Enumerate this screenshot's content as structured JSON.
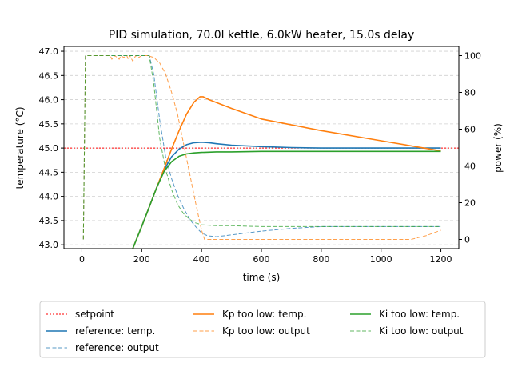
{
  "chart_data": {
    "type": "line",
    "title": "PID simulation, 70.0l kettle, 6.0kW heater, 15.0s delay",
    "xlabel": "time (s)",
    "ylabel_left": "temperature (°C)",
    "ylabel_right": "power (%)",
    "xlim": [
      -60,
      1260
    ],
    "ylim_left": [
      42.92,
      47.1
    ],
    "ylim_right": [
      -5,
      105
    ],
    "x_ticks": [
      0,
      200,
      400,
      600,
      800,
      1000,
      1200
    ],
    "y_left_ticks": [
      "43.0",
      "43.5",
      "44.0",
      "44.5",
      "45.0",
      "45.5",
      "46.0",
      "46.5",
      "47.0"
    ],
    "y_right_ticks": [
      0,
      20,
      40,
      60,
      80,
      100
    ],
    "grid": "horizontal dashed",
    "setpoint": 45.0,
    "series": [
      {
        "name": "setpoint",
        "axis": "left",
        "color": "#ff0000",
        "style": "dotted",
        "x": [
          -60,
          1260
        ],
        "y": [
          45.0,
          45.0
        ]
      },
      {
        "name": "reference: temp.",
        "axis": "left",
        "color": "#1f77b4",
        "style": "solid",
        "x": [
          170,
          200,
          225,
          250,
          275,
          300,
          325,
          350,
          375,
          400,
          425,
          450,
          500,
          600,
          700,
          800,
          1000,
          1200
        ],
        "y": [
          42.92,
          43.38,
          43.78,
          44.18,
          44.55,
          44.82,
          44.98,
          45.07,
          45.11,
          45.12,
          45.11,
          45.09,
          45.06,
          45.03,
          45.01,
          45.0,
          45.0,
          45.0
        ]
      },
      {
        "name": "reference: output",
        "axis": "right",
        "color": "#1f77b4",
        "style": "dashed",
        "x": [
          5,
          12,
          20,
          225,
          240,
          260,
          280,
          300,
          320,
          340,
          360,
          380,
          400,
          420,
          450,
          500,
          600,
          700,
          800,
          1000,
          1200
        ],
        "y": [
          0,
          100,
          100,
          100,
          90,
          65,
          45,
          33,
          24,
          17,
          11,
          7,
          3.5,
          2,
          1.5,
          2.5,
          4.5,
          6,
          7,
          7,
          7
        ]
      },
      {
        "name": "Kp too low: temp.",
        "axis": "left",
        "color": "#ff7f0e",
        "style": "solid",
        "x": [
          170,
          200,
          225,
          250,
          275,
          300,
          325,
          350,
          375,
          395,
          405,
          425,
          450,
          500,
          600,
          800,
          1000,
          1200
        ],
        "y": [
          42.92,
          43.38,
          43.78,
          44.18,
          44.58,
          44.98,
          45.36,
          45.7,
          45.95,
          46.06,
          46.06,
          46.0,
          45.94,
          45.82,
          45.6,
          45.36,
          45.15,
          44.94
        ]
      },
      {
        "name": "Kp too low: output",
        "axis": "right",
        "color": "#ff7f0e",
        "style": "dashed",
        "x": [
          5,
          12,
          20,
          95,
          100,
          110,
          125,
          130,
          140,
          150,
          155,
          160,
          170,
          180,
          190,
          200,
          220,
          240,
          260,
          280,
          300,
          320,
          340,
          360,
          380,
          400,
          410,
          420,
          500,
          700,
          900,
          1050,
          1100,
          1150,
          1200
        ],
        "y": [
          0,
          100,
          100,
          100,
          98,
          100,
          98,
          100,
          99,
          100,
          98,
          100,
          97,
          100,
          99,
          100,
          100,
          99,
          96,
          90,
          80,
          68,
          52,
          36,
          20,
          5,
          0,
          0,
          0,
          0,
          0,
          0,
          0,
          2,
          5
        ]
      },
      {
        "name": "Ki too low: temp.",
        "axis": "left",
        "color": "#2ca02c",
        "style": "solid",
        "x": [
          170,
          200,
          225,
          250,
          275,
          300,
          325,
          350,
          375,
          400,
          450,
          500,
          600,
          800,
          1000,
          1200
        ],
        "y": [
          42.92,
          43.38,
          43.78,
          44.18,
          44.52,
          44.72,
          44.83,
          44.88,
          44.9,
          44.91,
          44.92,
          44.92,
          44.93,
          44.93,
          44.93,
          44.93
        ]
      },
      {
        "name": "Ki too low: output",
        "axis": "right",
        "color": "#2ca02c",
        "style": "dashed",
        "x": [
          5,
          12,
          20,
          225,
          240,
          260,
          280,
          300,
          320,
          340,
          360,
          380,
          400,
          450,
          500,
          600,
          800,
          1000,
          1200
        ],
        "y": [
          0,
          100,
          100,
          100,
          85,
          55,
          38,
          27,
          19,
          14,
          11,
          9,
          8,
          7.5,
          7.5,
          7,
          7,
          7,
          7
        ]
      }
    ],
    "legend": {
      "placement": "below",
      "columns": [
        [
          "setpoint",
          "reference: temp.",
          "reference: output"
        ],
        [
          "Kp too low: temp.",
          "Kp too low: output"
        ],
        [
          "Ki too low: temp.",
          "Ki too low: output"
        ]
      ]
    }
  }
}
